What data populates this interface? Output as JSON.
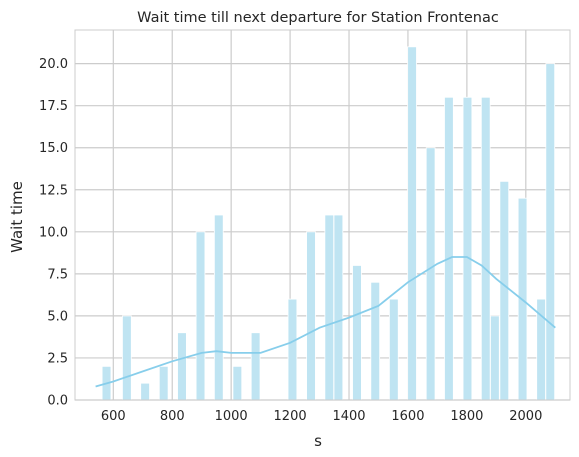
{
  "colors": {
    "bar_fill": "#bfe4f2",
    "kde_line": "#87ceeb",
    "grid": "#cccccc",
    "frame": "#cccccc"
  },
  "chart_data": {
    "type": "bar",
    "title": "Wait time till next departure for Station Frontenac",
    "xlabel": "s",
    "ylabel": "Wait time",
    "xlim": [
      470,
      2150
    ],
    "ylim": [
      0,
      22
    ],
    "grid": true,
    "xticks": [
      600,
      800,
      1000,
      1200,
      1400,
      1600,
      1800,
      2000
    ],
    "yticks": [
      0.0,
      2.5,
      5.0,
      7.5,
      10.0,
      12.5,
      15.0,
      17.5,
      20.0
    ],
    "bin_width": 30,
    "bars": [
      {
        "x": 577,
        "value": 2
      },
      {
        "x": 646,
        "value": 5
      },
      {
        "x": 708,
        "value": 1
      },
      {
        "x": 771,
        "value": 2
      },
      {
        "x": 833,
        "value": 4
      },
      {
        "x": 896,
        "value": 10
      },
      {
        "x": 958,
        "value": 11
      },
      {
        "x": 1021,
        "value": 2
      },
      {
        "x": 1083,
        "value": 4
      },
      {
        "x": 1208,
        "value": 6
      },
      {
        "x": 1271,
        "value": 10
      },
      {
        "x": 1333,
        "value": 11
      },
      {
        "x": 1364,
        "value": 11
      },
      {
        "x": 1427,
        "value": 8
      },
      {
        "x": 1489,
        "value": 7
      },
      {
        "x": 1552,
        "value": 6
      },
      {
        "x": 1614,
        "value": 21
      },
      {
        "x": 1677,
        "value": 15
      },
      {
        "x": 1739,
        "value": 18
      },
      {
        "x": 1802,
        "value": 18
      },
      {
        "x": 1864,
        "value": 18
      },
      {
        "x": 1895,
        "value": 5
      },
      {
        "x": 1927,
        "value": 13
      },
      {
        "x": 1989,
        "value": 12
      },
      {
        "x": 2052,
        "value": 6
      },
      {
        "x": 2083,
        "value": 20
      }
    ],
    "kde_curve": {
      "x": [
        540,
        600,
        700,
        800,
        900,
        950,
        1000,
        1100,
        1200,
        1300,
        1400,
        1500,
        1600,
        1700,
        1750,
        1800,
        1850,
        1900,
        2000,
        2100
      ],
      "y": [
        0.8,
        1.1,
        1.7,
        2.3,
        2.8,
        2.9,
        2.8,
        2.8,
        3.4,
        4.3,
        4.9,
        5.6,
        7.0,
        8.1,
        8.5,
        8.5,
        8.0,
        7.2,
        5.8,
        4.3
      ]
    }
  }
}
